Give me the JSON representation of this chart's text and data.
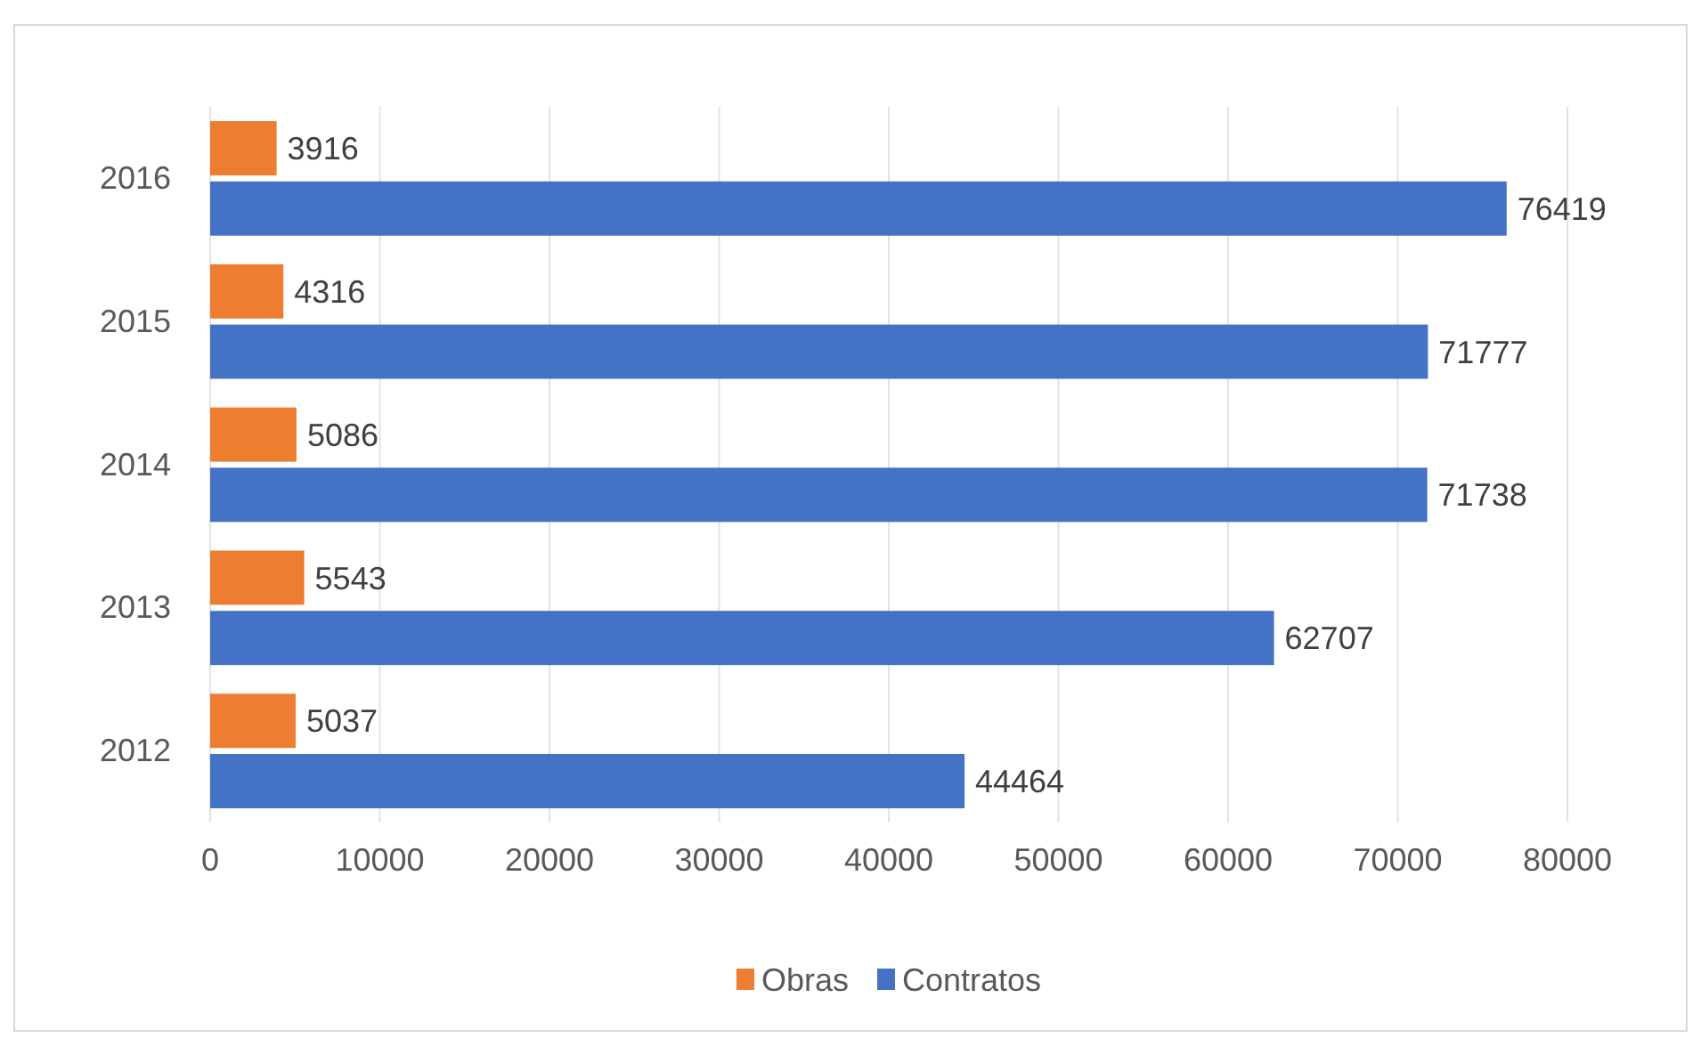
{
  "chart_data": {
    "type": "bar",
    "orientation": "horizontal",
    "categories": [
      "2016",
      "2015",
      "2014",
      "2013",
      "2012"
    ],
    "series": [
      {
        "name": "Obras",
        "color": "#ed7d31",
        "values": [
          3916,
          4316,
          5086,
          5543,
          5037
        ]
      },
      {
        "name": "Contratos",
        "color": "#4472c4",
        "values": [
          76419,
          71777,
          71738,
          62707,
          44464
        ]
      }
    ],
    "xlim": [
      0,
      80000
    ],
    "xticks": [
      0,
      10000,
      20000,
      30000,
      40000,
      50000,
      60000,
      70000,
      80000
    ],
    "grid": "x",
    "legend": "bottom",
    "data_labels": true
  }
}
